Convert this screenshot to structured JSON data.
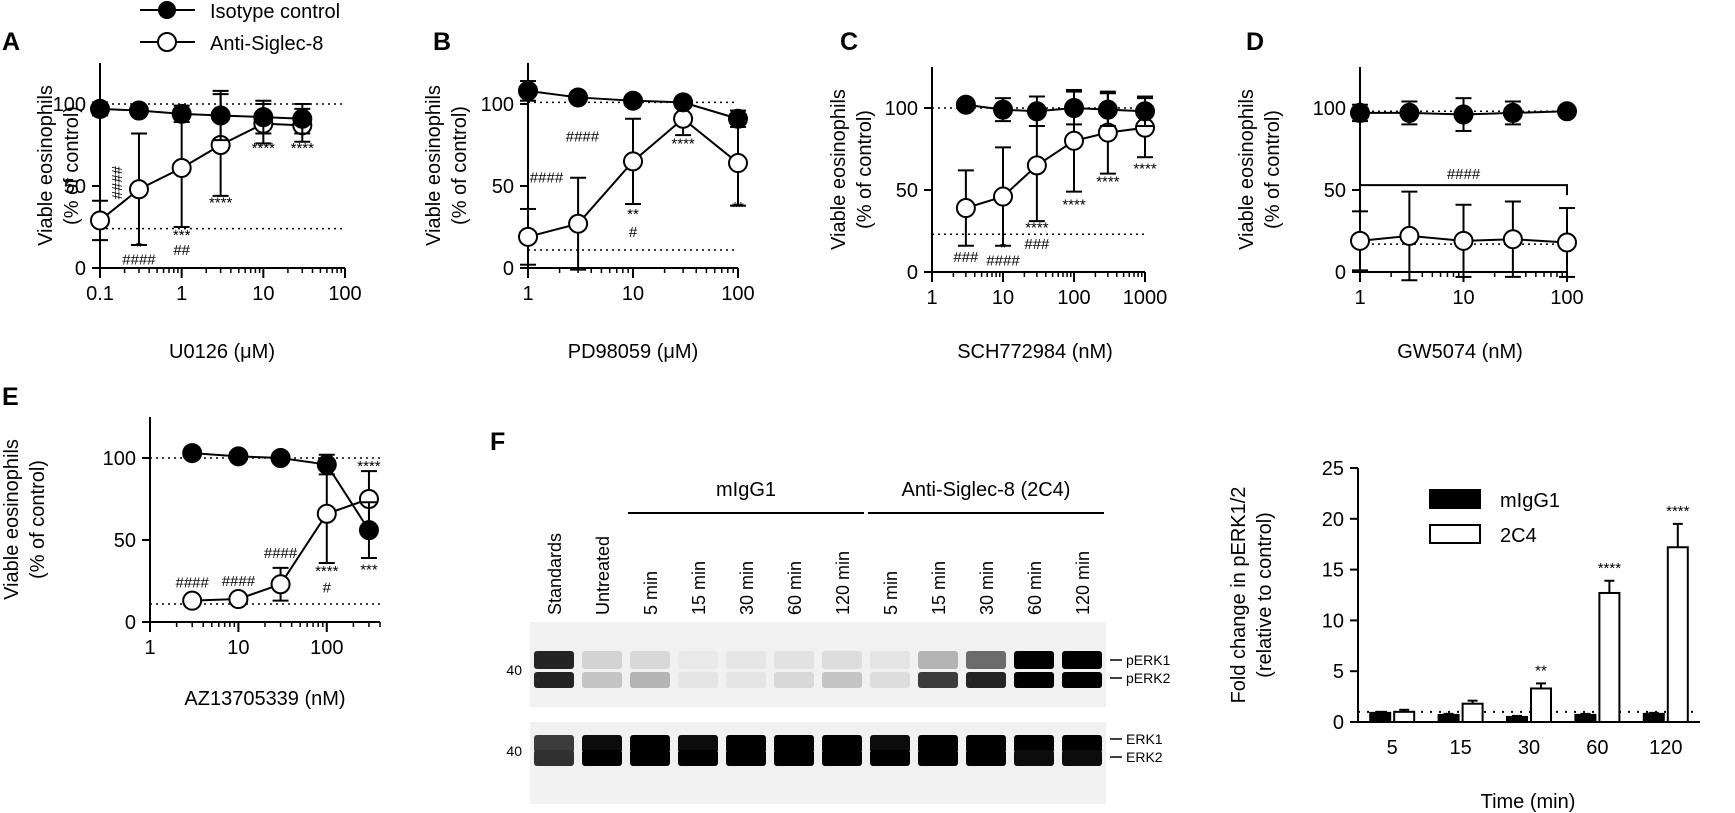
{
  "legend": {
    "series": [
      {
        "name": "Isotype control",
        "marker": "filled-circle"
      },
      {
        "name": "Anti-Siglec-8",
        "marker": "open-circle"
      }
    ]
  },
  "chart_data": [
    {
      "id": "A",
      "panel_label": "A",
      "type": "scatter",
      "x_scale": "log",
      "xlabel": "U0126 (μM)",
      "ylabel": "Viable eosinophils",
      "ylabel2": "(% of control)",
      "xlim": [
        0.1,
        100
      ],
      "ylim": [
        0,
        125
      ],
      "x_ticks": [
        0.1,
        1,
        10,
        100
      ],
      "x_tick_labels": [
        "0.1",
        "1",
        "10",
        "100"
      ],
      "y_ticks": [
        0,
        50,
        100
      ],
      "y_tick_labels": [
        "0",
        "50",
        "100"
      ],
      "ref_lines": [
        100,
        24
      ],
      "series": [
        {
          "name": "Isotype control",
          "style": "filled",
          "x": [
            0.1,
            0.3,
            1,
            3,
            10,
            30
          ],
          "y": [
            97,
            96,
            94,
            93,
            92,
            91
          ],
          "err": [
            4,
            3,
            5,
            15,
            10,
            9
          ]
        },
        {
          "name": "Anti-Siglec-8",
          "style": "open",
          "x": [
            0.1,
            0.3,
            1,
            3,
            10,
            30
          ],
          "y": [
            29,
            48,
            61,
            75,
            88,
            87
          ],
          "err": [
            12,
            34,
            36,
            31,
            12,
            10
          ]
        }
      ],
      "annotations": [
        {
          "text": "****",
          "x": 10,
          "y": 70
        },
        {
          "text": "****",
          "x": 30,
          "y": 70
        },
        {
          "text": "****",
          "x": 3,
          "y": 37
        },
        {
          "text": "***",
          "x": 1,
          "y": 17
        },
        {
          "text": "##",
          "x": 1,
          "y": 8
        },
        {
          "text": "*",
          "x": 0.3,
          "y": 10
        },
        {
          "text": "####",
          "x": 0.3,
          "y": 2
        },
        {
          "text": "####",
          "x": 0.14,
          "y": 52,
          "rotate": 90
        }
      ]
    },
    {
      "id": "B",
      "panel_label": "B",
      "type": "scatter",
      "x_scale": "log",
      "xlabel": "PD98059 (μM)",
      "ylabel": "Viable eosinophils",
      "ylabel2": "(% of control)",
      "xlim": [
        1,
        100
      ],
      "ylim": [
        0,
        125
      ],
      "x_ticks": [
        1,
        10,
        100
      ],
      "x_tick_labels": [
        "1",
        "10",
        "100"
      ],
      "y_ticks": [
        0,
        50,
        100
      ],
      "y_tick_labels": [
        "0",
        "50",
        "100"
      ],
      "ref_lines": [
        101,
        11
      ],
      "series": [
        {
          "name": "Isotype control",
          "style": "filled",
          "x": [
            1,
            3,
            10,
            30,
            100
          ],
          "y": [
            108,
            104,
            102,
            101,
            91
          ],
          "err": [
            6,
            2,
            2,
            3,
            5
          ]
        },
        {
          "name": "Anti-Siglec-8",
          "style": "open",
          "x": [
            1,
            3,
            10,
            30,
            100
          ],
          "y": [
            19,
            27,
            65,
            91,
            64
          ],
          "err": [
            17,
            28,
            26,
            10,
            26
          ]
        }
      ],
      "annotations": [
        {
          "text": "####",
          "x": 1.5,
          "y": 52
        },
        {
          "text": "####",
          "x": 3.3,
          "y": 77
        },
        {
          "text": "**",
          "x": 10,
          "y": 30
        },
        {
          "text": "#",
          "x": 10,
          "y": 19
        },
        {
          "text": "****",
          "x": 30,
          "y": 73
        },
        {
          "text": "**",
          "x": 100,
          "y": 34
        }
      ]
    },
    {
      "id": "C",
      "panel_label": "C",
      "type": "scatter",
      "x_scale": "log",
      "xlabel": "SCH772984 (nM)",
      "ylabel": "Viable eosinophils",
      "ylabel2": "(% of control)",
      "xlim": [
        1,
        1000
      ],
      "ylim": [
        0,
        125
      ],
      "x_ticks": [
        1,
        10,
        100,
        1000
      ],
      "x_tick_labels": [
        "1",
        "10",
        "100",
        "1000"
      ],
      "y_ticks": [
        0,
        50,
        100
      ],
      "y_tick_labels": [
        "0",
        "50",
        "100"
      ],
      "ref_lines": [
        100,
        23
      ],
      "series": [
        {
          "name": "Isotype control",
          "style": "filled",
          "x": [
            3,
            10,
            30,
            100,
            300,
            1000
          ],
          "y": [
            102,
            99,
            98,
            100,
            99,
            98
          ],
          "err": [
            2,
            7,
            9,
            10,
            10,
            9
          ]
        },
        {
          "name": "Anti-Siglec-8",
          "style": "open",
          "x": [
            3,
            10,
            30,
            100,
            300,
            1000
          ],
          "y": [
            39,
            46,
            65,
            80,
            85,
            88
          ],
          "err": [
            23,
            30,
            34,
            31,
            25,
            18
          ]
        }
      ],
      "annotations": [
        {
          "text": "****",
          "x": 100,
          "y": 38
        },
        {
          "text": "****",
          "x": 300,
          "y": 52
        },
        {
          "text": "****",
          "x": 1000,
          "y": 60
        },
        {
          "text": "****",
          "x": 30,
          "y": 24
        },
        {
          "text": "###",
          "x": 30,
          "y": 14
        },
        {
          "text": "*",
          "x": 10,
          "y": 12
        },
        {
          "text": "####",
          "x": 10,
          "y": 4
        },
        {
          "text": "###",
          "x": 3,
          "y": 6
        }
      ]
    },
    {
      "id": "D",
      "panel_label": "D",
      "type": "scatter",
      "x_scale": "log",
      "xlabel": "GW5074 (nM)",
      "ylabel": "Viable eosinophils",
      "ylabel2": "(% of control)",
      "xlim": [
        1,
        100
      ],
      "ylim": [
        0,
        125
      ],
      "x_ticks": [
        1,
        10,
        100
      ],
      "x_tick_labels": [
        "1",
        "10",
        "100"
      ],
      "y_ticks": [
        0,
        50,
        100
      ],
      "y_tick_labels": [
        "0",
        "50",
        "100"
      ],
      "ref_lines": [
        98,
        17
      ],
      "series": [
        {
          "name": "Isotype control",
          "style": "filled",
          "x": [
            1,
            3,
            10,
            30,
            100
          ],
          "y": [
            97,
            97,
            96,
            97,
            98
          ],
          "err": [
            5,
            7,
            10,
            7,
            2
          ]
        },
        {
          "name": "Anti-Siglec-8",
          "style": "open",
          "x": [
            1,
            3,
            10,
            30,
            100
          ],
          "y": [
            19,
            22,
            19,
            20,
            18
          ],
          "err": [
            18,
            27,
            22,
            23,
            21
          ]
        }
      ],
      "bracket": {
        "x1": 1,
        "x2": 100,
        "y": 53,
        "text": "####"
      }
    },
    {
      "id": "E",
      "panel_label": "E",
      "type": "scatter",
      "x_scale": "log",
      "xlabel": "AZ13705339 (nM)",
      "ylabel": "Viable eosinophils",
      "ylabel2": "(% of control)",
      "xlim": [
        1,
        400
      ],
      "ylim": [
        0,
        125
      ],
      "x_ticks": [
        1,
        10,
        100
      ],
      "x_tick_labels": [
        "1",
        "10",
        "100"
      ],
      "y_ticks": [
        0,
        50,
        100
      ],
      "y_tick_labels": [
        "0",
        "50",
        "100"
      ],
      "ref_lines": [
        100,
        11
      ],
      "series": [
        {
          "name": "Isotype control",
          "style": "filled",
          "x": [
            3,
            10,
            30,
            100,
            300
          ],
          "y": [
            103,
            101,
            100,
            96,
            56
          ],
          "err": [
            1,
            1,
            2,
            6,
            17
          ]
        },
        {
          "name": "Anti-Siglec-8",
          "style": "open",
          "x": [
            3,
            10,
            30,
            100,
            300
          ],
          "y": [
            13,
            14,
            23,
            66,
            75
          ],
          "err": [
            3,
            3,
            10,
            30,
            17
          ]
        }
      ],
      "annotations": [
        {
          "text": "####",
          "x": 3,
          "y": 21
        },
        {
          "text": "####",
          "x": 10,
          "y": 22
        },
        {
          "text": "####",
          "x": 30,
          "y": 39
        },
        {
          "text": "****",
          "x": 100,
          "y": 28
        },
        {
          "text": "#",
          "x": 100,
          "y": 18
        },
        {
          "text": "****",
          "x": 300,
          "y": 92
        },
        {
          "text": "***",
          "x": 300,
          "y": 29
        }
      ]
    },
    {
      "id": "F-bar",
      "panel_label": "F",
      "type": "bar",
      "categories": [
        "5",
        "15",
        "30",
        "60",
        "120"
      ],
      "xlabel": "Time (min)",
      "ylabel": "Fold change in pERK1/2",
      "ylabel2": "(relative to control)",
      "ylim": [
        0,
        25
      ],
      "y_ticks": [
        0,
        5,
        10,
        15,
        20,
        25
      ],
      "y_tick_labels": [
        "0",
        "5",
        "10",
        "15",
        "20",
        "25"
      ],
      "ref_lines": [
        1
      ],
      "series": [
        {
          "name": "mIgG1",
          "style": "filled",
          "values": [
            0.9,
            0.7,
            0.5,
            0.7,
            0.8
          ],
          "err": [
            0.1,
            0.1,
            0.1,
            0.1,
            0.1
          ]
        },
        {
          "name": "2C4",
          "style": "open",
          "values": [
            1.0,
            1.8,
            3.3,
            12.7,
            17.2
          ],
          "err": [
            0.2,
            0.3,
            0.5,
            1.2,
            2.3
          ]
        }
      ],
      "annotations": [
        {
          "category": "30",
          "text": "**"
        },
        {
          "category": "60",
          "text": "****"
        },
        {
          "category": "120",
          "text": "****"
        }
      ]
    }
  ],
  "western_blot": {
    "group_headers": [
      {
        "label": "mIgG1",
        "lanes": [
          2,
          6
        ]
      },
      {
        "label": "Anti-Siglec-8 (2C4)",
        "lanes": [
          7,
          11
        ]
      }
    ],
    "lanes": [
      "Standards",
      "Untreated",
      "5 min",
      "15 min",
      "30 min",
      "60 min",
      "120 min",
      "5 min",
      "15 min",
      "30 min",
      "60 min",
      "120 min"
    ],
    "marker": "40",
    "top_blot": {
      "band_labels": [
        "pERK1",
        "pERK2"
      ],
      "upper_intensity": [
        0.85,
        0.12,
        0.1,
        0.03,
        0.04,
        0.06,
        0.08,
        0.05,
        0.25,
        0.55,
        1.0,
        1.0
      ],
      "lower_intensity": [
        0.85,
        0.18,
        0.25,
        0.05,
        0.05,
        0.1,
        0.18,
        0.08,
        0.75,
        0.85,
        1.0,
        1.0
      ]
    },
    "bottom_blot": {
      "band_labels": [
        "ERK1",
        "ERK2"
      ],
      "upper_intensity": [
        0.75,
        0.95,
        1.0,
        0.95,
        1.0,
        1.0,
        1.0,
        0.95,
        1.0,
        1.0,
        1.0,
        1.0
      ],
      "lower_intensity": [
        0.8,
        1.0,
        1.0,
        1.0,
        1.0,
        1.0,
        1.0,
        1.0,
        1.0,
        1.0,
        0.95,
        0.95
      ]
    }
  }
}
